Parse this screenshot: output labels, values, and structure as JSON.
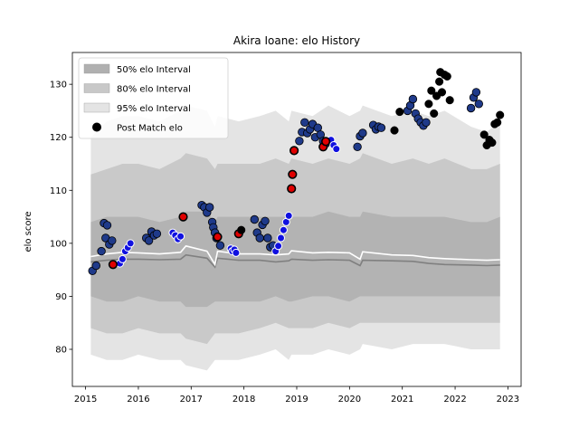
{
  "chart_data": {
    "type": "scatter",
    "title": "Akira Ioane: elo History",
    "xlabel": "",
    "ylabel": "elo score",
    "xlim": [
      2014.75,
      2023.25
    ],
    "ylim": [
      73,
      136
    ],
    "grid": false,
    "legend_position": "top-left",
    "x_ticks": [
      {
        "value": 2015,
        "label": "2015"
      },
      {
        "value": 2016,
        "label": "2016"
      },
      {
        "value": 2017,
        "label": "2017"
      },
      {
        "value": 2018,
        "label": "2018"
      },
      {
        "value": 2019,
        "label": "2019"
      },
      {
        "value": 2020,
        "label": "2020"
      },
      {
        "value": 2021,
        "label": "2021"
      },
      {
        "value": 2022,
        "label": "2022"
      },
      {
        "value": 2023,
        "label": "2023"
      }
    ],
    "y_ticks": [
      {
        "value": 80,
        "label": "80"
      },
      {
        "value": 90,
        "label": "90"
      },
      {
        "value": 100,
        "label": "100"
      },
      {
        "value": 110,
        "label": "110"
      },
      {
        "value": 120,
        "label": "120"
      },
      {
        "value": 130,
        "label": "130"
      }
    ],
    "legend": [
      {
        "label": "50% elo Interval",
        "kind": "band",
        "color": "#b0b0b0"
      },
      {
        "label": "80% elo Interval",
        "kind": "band",
        "color": "#c8c8c8"
      },
      {
        "label": "95% elo Interval",
        "kind": "band",
        "color": "#e4e4e4"
      },
      {
        "label": "Post Match elo",
        "kind": "marker",
        "color": "#000000"
      }
    ],
    "colors": {
      "band95": "#e4e4e4",
      "band80": "#c9c9c9",
      "band50": "#b3b3b3",
      "median": "#808080",
      "mean": "#ffffff",
      "navy": "#1f3a8a",
      "blue": "#1010e0",
      "red": "#e00000",
      "black": "#000000"
    },
    "bands": {
      "x": [
        2015.1,
        2015.4,
        2015.7,
        2016.0,
        2016.4,
        2016.8,
        2016.9,
        2017.3,
        2017.45,
        2017.5,
        2017.9,
        2018.3,
        2018.6,
        2018.85,
        2018.9,
        2019.3,
        2019.6,
        2020.0,
        2020.2,
        2020.25,
        2020.8,
        2021.2,
        2021.5,
        2021.8,
        2022.3,
        2022.6,
        2022.85
      ],
      "p95_low": [
        79,
        78,
        78,
        79,
        78,
        78,
        77,
        76,
        78,
        78,
        78,
        79,
        80,
        78,
        79,
        79,
        80,
        79,
        80,
        81,
        80,
        81,
        81,
        81,
        80,
        80,
        80
      ],
      "p95_high": [
        120,
        123,
        124,
        124,
        123,
        125,
        126,
        125,
        122,
        124,
        123,
        124,
        125,
        123,
        125,
        124,
        126,
        124,
        125,
        126,
        124,
        125,
        124,
        125,
        122,
        121,
        123
      ],
      "p80_low": [
        84,
        83,
        83,
        84,
        83,
        83,
        82,
        81,
        83,
        83,
        83,
        84,
        85,
        84,
        84,
        84,
        85,
        84,
        85,
        85,
        85,
        85,
        85,
        85,
        85,
        85,
        85
      ],
      "p80_high": [
        113,
        114,
        115,
        115,
        114,
        116,
        117,
        116,
        114,
        115,
        115,
        115,
        116,
        115,
        116,
        115,
        116,
        115,
        116,
        117,
        115,
        116,
        115,
        116,
        114,
        114,
        115
      ],
      "p50_low": [
        90,
        89,
        89,
        90,
        89,
        89,
        88,
        88,
        89,
        89,
        89,
        89,
        90,
        89,
        89,
        90,
        90,
        89,
        90,
        90,
        90,
        90,
        90,
        90,
        90,
        90,
        90
      ],
      "p50_high": [
        104,
        105,
        105,
        105,
        104,
        105,
        106,
        106,
        104,
        105,
        105,
        105,
        105,
        105,
        105,
        105,
        106,
        105,
        105,
        106,
        105,
        105,
        105,
        105,
        104,
        104,
        105
      ],
      "median": [
        96.5,
        96.8,
        97.0,
        97.0,
        96.9,
        97.0,
        97.8,
        97.2,
        95.5,
        97.2,
        96.8,
        96.8,
        96.5,
        96.7,
        97.0,
        96.8,
        96.9,
        96.8,
        95.8,
        96.8,
        96.7,
        96.6,
        96.2,
        96.0,
        95.9,
        95.8,
        95.9
      ],
      "mean": [
        97.5,
        98.0,
        98.3,
        98.2,
        98.0,
        98.3,
        99.5,
        98.5,
        96.0,
        98.5,
        98.0,
        98.0,
        97.8,
        98.0,
        98.6,
        98.2,
        98.3,
        98.2,
        97.0,
        98.4,
        97.8,
        97.7,
        97.3,
        97.1,
        96.9,
        96.8,
        96.9
      ]
    },
    "series": [
      {
        "style": "navy",
        "x": [
          2015.13,
          2015.2,
          2015.3,
          2015.35,
          2015.38,
          2015.41,
          2015.45,
          2015.5,
          2016.15,
          2016.2,
          2016.25,
          2016.3,
          2016.35,
          2017.2,
          2017.25,
          2017.3,
          2017.35,
          2017.4,
          2017.42,
          2017.45,
          2017.48,
          2017.55,
          2018.2,
          2018.25,
          2018.3,
          2018.35,
          2018.4,
          2018.45,
          2018.5,
          2018.55,
          2019.05,
          2019.1,
          2019.15,
          2019.2,
          2019.25,
          2019.3,
          2019.35,
          2019.4,
          2019.45,
          2019.5,
          2019.55,
          2020.15,
          2020.2,
          2020.25,
          2020.45,
          2020.5,
          2020.55,
          2020.6,
          2021.1,
          2021.15,
          2021.2,
          2021.25,
          2021.3,
          2021.35,
          2021.4,
          2021.45,
          2022.3,
          2022.35,
          2022.4,
          2022.45
        ],
        "y": [
          94.8,
          95.8,
          98.5,
          103.8,
          101,
          103.4,
          99.8,
          100.5,
          101,
          100.5,
          102.2,
          101.5,
          101.8,
          107.2,
          106.8,
          105.8,
          106.8,
          104,
          103,
          102,
          101,
          99.6,
          104.5,
          102,
          101,
          103.5,
          104.2,
          101,
          99.3,
          99.6,
          119.3,
          121,
          122.8,
          120.8,
          121.5,
          122.5,
          120,
          121.8,
          120.5,
          119.3,
          118.8,
          118.2,
          120.2,
          120.8,
          122.3,
          121.5,
          122,
          121.8,
          125,
          126,
          127.2,
          124.5,
          123.5,
          122.8,
          122.2,
          122.8,
          125.5,
          127.5,
          128.5,
          126.3
        ]
      },
      {
        "style": "blue",
        "x": [
          2015.65,
          2015.7,
          2015.75,
          2015.8,
          2015.85,
          2016.65,
          2016.7,
          2016.75,
          2016.8,
          2017.75,
          2017.78,
          2017.82,
          2017.85,
          2018.6,
          2018.65,
          2018.7,
          2018.75,
          2018.8,
          2018.85,
          2019.65,
          2019.7,
          2019.75
        ],
        "y": [
          96.2,
          97,
          98.5,
          99.2,
          100,
          102,
          101.5,
          100.8,
          101.3,
          99,
          98.5,
          98.8,
          98.2,
          98.5,
          99.5,
          101,
          102.5,
          104,
          105.2,
          119.5,
          118.5,
          117.8
        ]
      },
      {
        "style": "red",
        "x": [
          2015.52,
          2016.85,
          2017.5,
          2017.9,
          2018.9,
          2018.92,
          2018.95,
          2019.5,
          2019.55
        ],
        "y": [
          96,
          105,
          101.2,
          101.8,
          110.3,
          113,
          117.5,
          118.2,
          119.2
        ]
      },
      {
        "style": "black",
        "x": [
          2017.95,
          2020.85,
          2020.95,
          2021.5,
          2021.55,
          2021.6,
          2021.65,
          2021.7,
          2021.72,
          2021.75,
          2021.8,
          2021.85,
          2021.9,
          2022.55,
          2022.6,
          2022.65,
          2022.7,
          2022.75,
          2022.8,
          2022.85
        ],
        "y": [
          102.5,
          121.3,
          124.8,
          126.3,
          128.8,
          124.5,
          127.8,
          130.5,
          132.3,
          128.5,
          131.8,
          131.5,
          127,
          120.5,
          118.5,
          119.5,
          119,
          122.5,
          122.8,
          124.2
        ]
      }
    ]
  }
}
